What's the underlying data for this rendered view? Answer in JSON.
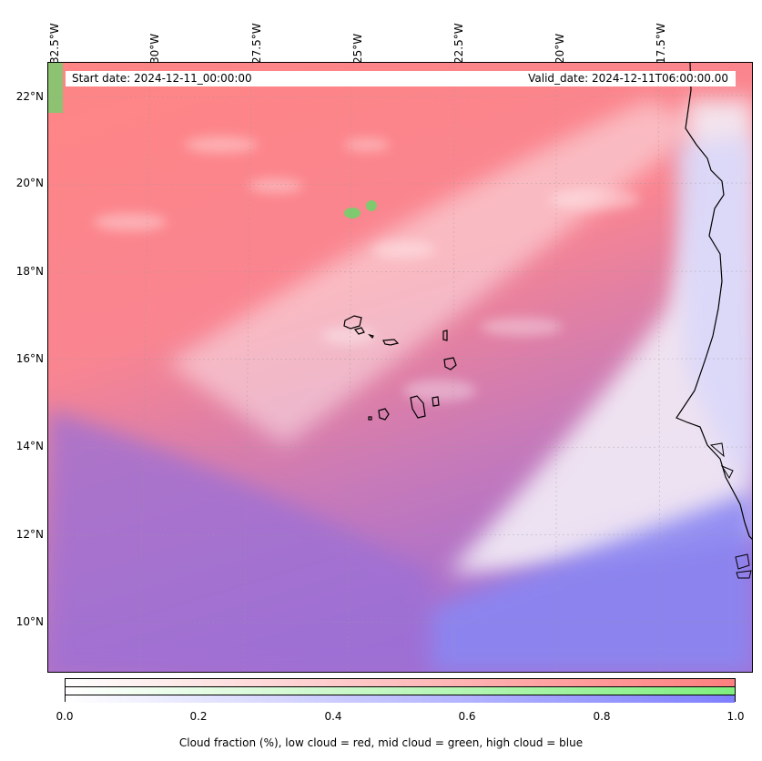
{
  "header": {
    "start_date": "Start date: 2024-12-11_00:00:00",
    "valid_date": "Valid_date: 2024-12-11T06:00:00.00"
  },
  "longitude_labels": [
    "32.5°W",
    "30°W",
    "27.5°W",
    "25°W",
    "22.5°W",
    "20°W",
    "17.5°W"
  ],
  "latitude_labels": [
    "22°N",
    "20°N",
    "18°N",
    "16°N",
    "14°N",
    "12°N",
    "10°N"
  ],
  "colorbar": {
    "ticks": [
      "0.0",
      "0.2",
      "0.4",
      "0.6",
      "0.8",
      "1.0"
    ],
    "label": "Cloud fraction (%), low cloud = red, mid cloud = green, high cloud = blue",
    "colors": {
      "low": "#ff7f7f",
      "mid": "#7fef7f",
      "high": "#7f7fff"
    }
  }
}
